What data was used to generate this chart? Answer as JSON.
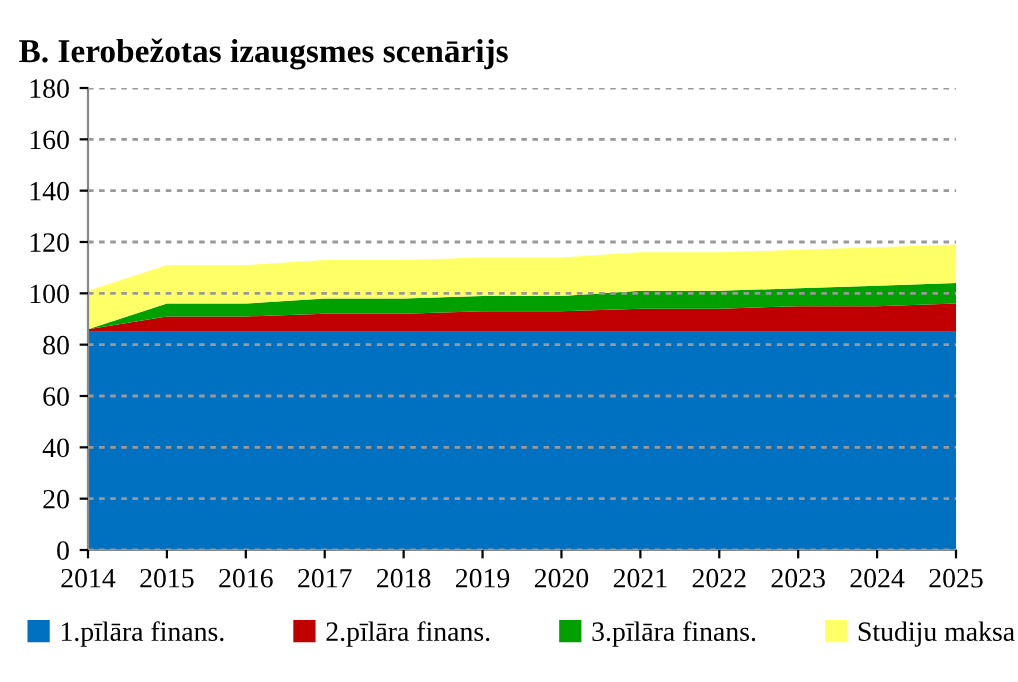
{
  "chart_data": {
    "type": "area",
    "stacked": true,
    "title": "B. Ierobežotas izaugsmes scenārijs",
    "x": [
      2014,
      2015,
      2016,
      2017,
      2018,
      2019,
      2020,
      2021,
      2022,
      2023,
      2024,
      2025
    ],
    "series": [
      {
        "name": "1.pīlāra finans.",
        "color": "#0070c0",
        "values": [
          85,
          85,
          85,
          85,
          85,
          85,
          85,
          85,
          85,
          85,
          85,
          85
        ]
      },
      {
        "name": "2.pīlāra finans.",
        "color": "#c00000",
        "values": [
          1,
          6,
          6,
          7,
          7,
          8,
          8,
          9,
          9,
          10,
          10,
          11
        ]
      },
      {
        "name": "3.pīlāra finans.",
        "color": "#00a000",
        "values": [
          0,
          5,
          5,
          6,
          6,
          6,
          6,
          7,
          7,
          7,
          8,
          8
        ]
      },
      {
        "name": "Studiju maksa",
        "color": "#ffff66",
        "values": [
          15,
          15,
          15,
          15,
          15,
          15,
          15,
          15,
          15,
          15,
          15,
          15
        ]
      }
    ],
    "xlim": [
      2014,
      2025
    ],
    "xticks": [
      2014,
      2015,
      2016,
      2017,
      2018,
      2019,
      2020,
      2021,
      2022,
      2023,
      2024,
      2025
    ],
    "ylim": [
      0,
      180
    ],
    "yticks": [
      0,
      20,
      40,
      60,
      80,
      100,
      120,
      140,
      160,
      180
    ],
    "grid": "y",
    "legend": "bottom"
  }
}
